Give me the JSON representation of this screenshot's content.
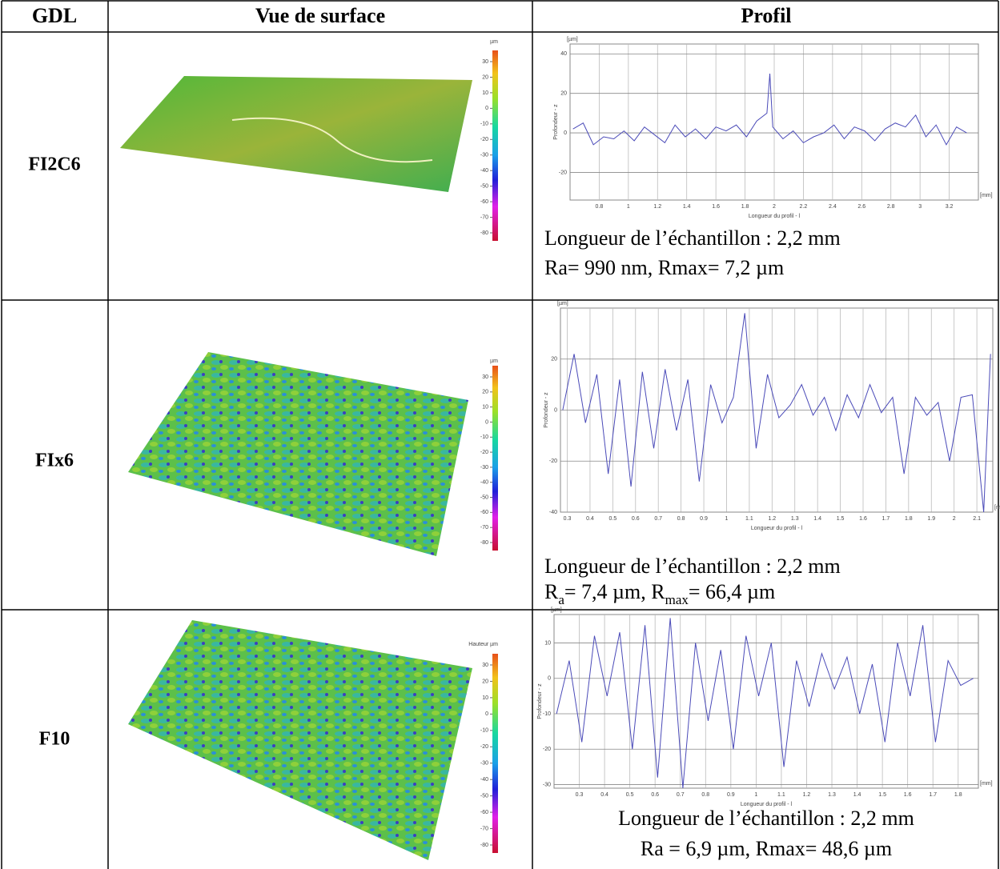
{
  "table": {
    "headers": [
      "GDL",
      "Vue de surface",
      "Profil"
    ],
    "rows": [
      {
        "gdl": "FI2C6",
        "surface": {
          "unit": "µm",
          "ticks": [
            30,
            20,
            10,
            0,
            -10,
            -20,
            -30,
            -40,
            -50,
            -60,
            -70,
            -80
          ],
          "lim": [
            -80,
            30
          ]
        },
        "profile": {
          "y_unit": "[µm]",
          "y_label": "Profondeur - z",
          "x_label": "Longueur du profil - l",
          "x_unit": "[mm]",
          "xlim": [
            0.6,
            3.4
          ],
          "ylim": [
            -34,
            45
          ],
          "xticks": [
            0.8,
            1,
            1.2,
            1.4,
            1.6,
            1.8,
            2,
            2.2,
            2.4,
            2.6,
            2.8,
            3,
            3.2
          ],
          "yticks": [
            40,
            20,
            0,
            -20
          ],
          "color": "#4a4ab8",
          "x": [
            0.62,
            0.69,
            0.76,
            0.83,
            0.9,
            0.97,
            1.04,
            1.11,
            1.18,
            1.25,
            1.32,
            1.39,
            1.46,
            1.53,
            1.6,
            1.67,
            1.74,
            1.81,
            1.88,
            1.95,
            1.97,
            1.99,
            2.06,
            2.13,
            2.2,
            2.27,
            2.34,
            2.41,
            2.48,
            2.55,
            2.62,
            2.69,
            2.76,
            2.83,
            2.9,
            2.97,
            3.04,
            3.11,
            3.18,
            3.25,
            3.32
          ],
          "values": [
            2,
            5,
            -6,
            -2,
            -3,
            1,
            -4,
            3,
            -1,
            -5,
            4,
            -2,
            2,
            -3,
            3,
            1,
            4,
            -2,
            6,
            10,
            30,
            3,
            -3,
            1,
            -5,
            -2,
            0,
            4,
            -3,
            3,
            1,
            -4,
            2,
            5,
            3,
            9,
            -2,
            4,
            -6,
            3,
            0
          ]
        },
        "caption": [
          [
            {
              "text": "Longueur de l’échantillon : 2,2 mm",
              "sub": false
            }
          ],
          [
            {
              "text": "Ra= 990 nm, Rmax= 7,2 µm",
              "sub": false
            }
          ]
        ]
      },
      {
        "gdl": "FIx6",
        "surface": {
          "unit": "µm",
          "ticks": [
            30,
            20,
            10,
            0,
            -10,
            -20,
            -30,
            -40,
            -50,
            -60,
            -70,
            -80
          ],
          "lim": [
            -80,
            30
          ]
        },
        "profile": {
          "y_unit": "[µm]",
          "y_label": "Profondeur - z",
          "x_label": "Longueur du profil - l",
          "x_unit": "[mm]",
          "xlim": [
            0.27,
            2.17
          ],
          "ylim": [
            -40,
            40
          ],
          "xticks": [
            0.3,
            0.4,
            0.5,
            0.6,
            0.7,
            0.8,
            0.9,
            1,
            1.1,
            1.2,
            1.3,
            1.4,
            1.5,
            1.6,
            1.7,
            1.8,
            1.9,
            2,
            2.1
          ],
          "yticks": [
            20,
            0,
            -20,
            -40
          ],
          "color": "#4a4ab8",
          "x": [
            0.28,
            0.33,
            0.38,
            0.43,
            0.48,
            0.53,
            0.58,
            0.63,
            0.68,
            0.73,
            0.78,
            0.83,
            0.88,
            0.93,
            0.98,
            1.03,
            1.08,
            1.13,
            1.18,
            1.23,
            1.28,
            1.33,
            1.38,
            1.43,
            1.48,
            1.53,
            1.58,
            1.63,
            1.68,
            1.73,
            1.78,
            1.83,
            1.88,
            1.93,
            1.98,
            2.03,
            2.08,
            2.13,
            2.16
          ],
          "values": [
            0,
            22,
            -5,
            14,
            -25,
            12,
            -30,
            15,
            -15,
            16,
            -8,
            12,
            -28,
            10,
            -5,
            5,
            38,
            -15,
            14,
            -3,
            2,
            10,
            -2,
            5,
            -8,
            6,
            -3,
            10,
            -1,
            5,
            -25,
            5,
            -2,
            3,
            -20,
            5,
            6,
            -40,
            22
          ]
        },
        "caption": [
          [
            {
              "text": "Longueur de l’échantillon : 2,2 mm",
              "sub": false
            }
          ],
          [
            {
              "text": "R",
              "sub": false
            },
            {
              "text": "a",
              "sub": true
            },
            {
              "text": "= 7,4 µm, R",
              "sub": false
            },
            {
              "text": "max",
              "sub": true
            },
            {
              "text": "= 66,4 µm",
              "sub": false
            }
          ]
        ]
      },
      {
        "gdl": "F10",
        "surface": {
          "unit": "Hauteur µm",
          "ticks": [
            30,
            20,
            10,
            0,
            -10,
            -20,
            -30,
            -40,
            -50,
            -60,
            -70,
            -80
          ],
          "lim": [
            -80,
            30
          ]
        },
        "profile": {
          "y_unit": "[µm]",
          "y_label": "Profondeur - z",
          "x_label": "Longueur du profil - l",
          "x_unit": "[mm]",
          "xlim": [
            0.2,
            1.88
          ],
          "ylim": [
            -31,
            18
          ],
          "xticks": [
            0.3,
            0.4,
            0.5,
            0.6,
            0.7,
            0.8,
            0.9,
            1,
            1.1,
            1.2,
            1.3,
            1.4,
            1.5,
            1.6,
            1.7,
            1.8
          ],
          "yticks": [
            10,
            0,
            -10,
            -20,
            -30
          ],
          "color": "#4a4ab8",
          "x": [
            0.21,
            0.26,
            0.31,
            0.36,
            0.41,
            0.46,
            0.51,
            0.56,
            0.61,
            0.66,
            0.71,
            0.76,
            0.81,
            0.86,
            0.91,
            0.96,
            1.01,
            1.06,
            1.11,
            1.16,
            1.21,
            1.26,
            1.31,
            1.36,
            1.41,
            1.46,
            1.51,
            1.56,
            1.61,
            1.66,
            1.71,
            1.76,
            1.81,
            1.86
          ],
          "values": [
            -10,
            5,
            -18,
            12,
            -5,
            13,
            -20,
            15,
            -28,
            17,
            -31,
            10,
            -12,
            8,
            -20,
            12,
            -5,
            10,
            -25,
            5,
            -8,
            7,
            -3,
            6,
            -10,
            4,
            -18,
            10,
            -5,
            15,
            -18,
            5,
            -2,
            0
          ]
        },
        "caption": [
          [
            {
              "text": "Longueur de l’échantillon : 2,2 mm",
              "sub": false
            }
          ],
          [
            {
              "text": "Ra = 6,9 µm, Rmax= 48,6 µm",
              "sub": false
            }
          ]
        ]
      }
    ]
  }
}
